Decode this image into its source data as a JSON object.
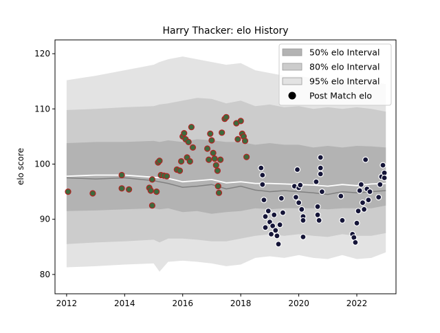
{
  "chart_data": {
    "type": "scatter",
    "title": "Harry Thacker: elo History",
    "xlabel": "",
    "ylabel": "elo score",
    "xlim": [
      2011.6,
      2023.35
    ],
    "ylim": [
      76.5,
      122.5
    ],
    "x_ticks": [
      2012,
      2014,
      2016,
      2018,
      2020,
      2022
    ],
    "y_ticks": [
      80,
      90,
      100,
      110,
      120
    ],
    "legend_position": "upper right",
    "legend": [
      {
        "label": "50% elo Interval",
        "kind": "band",
        "color": "#b3b3b3"
      },
      {
        "label": "80% elo Interval",
        "kind": "band",
        "color": "#cccccc"
      },
      {
        "label": "95% elo Interval",
        "kind": "band",
        "color": "#e3e3e3"
      },
      {
        "label": "Post Match elo",
        "kind": "marker",
        "color": "#000000"
      }
    ],
    "colors": {
      "band50": "#b3b3b3",
      "band80": "#cccccc",
      "band95": "#e3e3e3",
      "median_line": "#808080",
      "mean_line": "#ffffff",
      "green_fill": "#3d6b3d",
      "red_edge": "#b22222",
      "dark_fill": "#151538",
      "white_edge": "#ffffff"
    },
    "intervals": {
      "x": [
        2012.0,
        2013.0,
        2014.0,
        2015.0,
        2015.2,
        2015.5,
        2016.0,
        2016.5,
        2017.0,
        2017.5,
        2018.0,
        2018.5,
        2019.0,
        2019.5,
        2020.0,
        2020.5,
        2021.0,
        2021.5,
        2022.0,
        2022.5,
        2023.0
      ],
      "p95_low": [
        81.3,
        81.5,
        81.8,
        82.0,
        80.5,
        82.3,
        82.5,
        82.3,
        82.0,
        81.5,
        81.8,
        83.0,
        83.3,
        83.0,
        83.5,
        83.0,
        82.8,
        83.5,
        82.8,
        83.0,
        84.0
      ],
      "p80_low": [
        85.5,
        85.8,
        86.0,
        86.3,
        85.8,
        86.5,
        86.5,
        86.3,
        86.0,
        86.0,
        86.5,
        87.0,
        87.3,
        87.0,
        87.3,
        87.0,
        86.8,
        87.3,
        87.0,
        87.0,
        87.5
      ],
      "p50_low": [
        91.5,
        91.6,
        91.8,
        92.0,
        91.8,
        92.0,
        91.3,
        91.5,
        91.0,
        91.3,
        91.5,
        92.0,
        91.8,
        92.0,
        92.0,
        92.0,
        91.8,
        92.0,
        92.0,
        92.0,
        92.5
      ],
      "p50_high": [
        103.8,
        104.0,
        104.0,
        104.2,
        104.0,
        104.3,
        104.0,
        104.5,
        104.3,
        104.0,
        104.0,
        103.5,
        103.8,
        103.5,
        103.5,
        103.0,
        103.3,
        103.0,
        103.3,
        103.2,
        103.0
      ],
      "p80_high": [
        109.8,
        110.0,
        110.3,
        110.5,
        110.8,
        111.0,
        111.5,
        112.0,
        111.8,
        111.0,
        111.5,
        110.5,
        110.8,
        110.3,
        110.5,
        110.0,
        110.3,
        110.0,
        110.3,
        110.0,
        109.5
      ],
      "p95_high": [
        115.2,
        116.0,
        117.0,
        118.0,
        118.5,
        119.0,
        119.5,
        119.0,
        118.5,
        118.0,
        118.3,
        117.0,
        116.5,
        116.0,
        116.0,
        115.5,
        115.0,
        115.5,
        115.0,
        115.0,
        114.5
      ]
    },
    "median_line": {
      "x": [
        2012.0,
        2013.0,
        2014.0,
        2015.0,
        2015.5,
        2016.0,
        2016.5,
        2017.0,
        2017.5,
        2018.0,
        2018.5,
        2019.0,
        2019.5,
        2020.0,
        2020.5,
        2021.0,
        2021.5,
        2022.0,
        2022.5,
        2023.0
      ],
      "y": [
        97.5,
        97.3,
        97.5,
        97.0,
        96.5,
        95.8,
        96.0,
        96.3,
        95.5,
        96.0,
        95.3,
        95.0,
        95.2,
        95.0,
        94.8,
        94.5,
        95.0,
        94.8,
        95.0,
        95.2
      ]
    },
    "mean_line": {
      "x": [
        2012.0,
        2013.0,
        2014.0,
        2015.0,
        2015.5,
        2016.0,
        2016.5,
        2017.0,
        2017.5,
        2018.0,
        2018.5,
        2019.0,
        2019.5,
        2020.0,
        2020.5,
        2021.0,
        2021.5,
        2022.0,
        2022.5,
        2023.0
      ],
      "y": [
        97.8,
        98.0,
        98.0,
        97.6,
        97.4,
        96.8,
        97.0,
        97.2,
        96.6,
        96.8,
        96.5,
        96.5,
        96.4,
        96.3,
        96.2,
        96.0,
        96.3,
        96.1,
        96.4,
        96.5
      ]
    },
    "series": [
      {
        "style": "green-red",
        "points": [
          [
            2012.05,
            95.0
          ],
          [
            2012.9,
            94.7
          ],
          [
            2013.9,
            98.0
          ],
          [
            2013.9,
            95.6
          ],
          [
            2014.15,
            95.4
          ],
          [
            2014.85,
            95.7
          ],
          [
            2014.9,
            95.2
          ],
          [
            2014.95,
            97.2
          ],
          [
            2014.95,
            92.5
          ],
          [
            2015.1,
            95.0
          ],
          [
            2015.15,
            100.3
          ],
          [
            2015.2,
            100.6
          ],
          [
            2015.25,
            98.0
          ],
          [
            2015.35,
            97.9
          ],
          [
            2015.45,
            97.8
          ],
          [
            2015.8,
            99.0
          ],
          [
            2015.9,
            98.8
          ],
          [
            2015.95,
            100.5
          ],
          [
            2016.0,
            105.0
          ],
          [
            2016.05,
            105.6
          ],
          [
            2016.1,
            104.5
          ],
          [
            2016.15,
            101.2
          ],
          [
            2016.2,
            104.0
          ],
          [
            2016.25,
            100.5
          ],
          [
            2016.3,
            106.7
          ],
          [
            2016.35,
            103.0
          ],
          [
            2016.85,
            102.8
          ],
          [
            2016.9,
            100.8
          ],
          [
            2016.95,
            105.5
          ],
          [
            2017.0,
            104.3
          ],
          [
            2017.05,
            102.0
          ],
          [
            2017.1,
            101.0
          ],
          [
            2017.15,
            99.8
          ],
          [
            2017.2,
            98.8
          ],
          [
            2017.22,
            96.0
          ],
          [
            2017.25,
            94.8
          ],
          [
            2017.3,
            100.8
          ],
          [
            2017.35,
            105.7
          ],
          [
            2017.45,
            108.2
          ],
          [
            2017.5,
            108.5
          ],
          [
            2017.85,
            107.4
          ],
          [
            2017.9,
            104.5
          ],
          [
            2018.0,
            107.8
          ],
          [
            2018.05,
            105.5
          ],
          [
            2018.1,
            105.0
          ],
          [
            2018.15,
            104.2
          ],
          [
            2018.2,
            101.3
          ]
        ]
      },
      {
        "style": "dark-white",
        "points": [
          [
            2018.7,
            99.3
          ],
          [
            2018.75,
            98.0
          ],
          [
            2018.75,
            96.3
          ],
          [
            2018.8,
            93.5
          ],
          [
            2018.85,
            90.5
          ],
          [
            2018.85,
            88.5
          ],
          [
            2018.95,
            91.5
          ],
          [
            2019.0,
            89.5
          ],
          [
            2019.05,
            87.3
          ],
          [
            2019.1,
            88.8
          ],
          [
            2019.15,
            90.8
          ],
          [
            2019.2,
            88.0
          ],
          [
            2019.25,
            87.0
          ],
          [
            2019.3,
            85.5
          ],
          [
            2019.35,
            89.0
          ],
          [
            2019.4,
            93.8
          ],
          [
            2019.45,
            91.2
          ],
          [
            2019.85,
            96.0
          ],
          [
            2019.9,
            94.0
          ],
          [
            2019.95,
            99.0
          ],
          [
            2020.0,
            95.7
          ],
          [
            2020.0,
            93.0
          ],
          [
            2020.05,
            96.2
          ],
          [
            2020.1,
            91.8
          ],
          [
            2020.15,
            90.5
          ],
          [
            2020.15,
            89.8
          ],
          [
            2020.15,
            86.8
          ],
          [
            2020.6,
            96.8
          ],
          [
            2020.65,
            92.3
          ],
          [
            2020.65,
            90.8
          ],
          [
            2020.7,
            89.8
          ],
          [
            2020.75,
            101.2
          ],
          [
            2020.75,
            99.3
          ],
          [
            2020.75,
            98.2
          ],
          [
            2020.8,
            95.0
          ],
          [
            2021.45,
            94.2
          ],
          [
            2021.5,
            89.8
          ],
          [
            2021.85,
            87.3
          ],
          [
            2021.9,
            86.7
          ],
          [
            2021.95,
            85.8
          ],
          [
            2022.0,
            89.3
          ],
          [
            2022.05,
            91.5
          ],
          [
            2022.1,
            95.2
          ],
          [
            2022.15,
            96.3
          ],
          [
            2022.2,
            93.0
          ],
          [
            2022.25,
            91.8
          ],
          [
            2022.3,
            100.8
          ],
          [
            2022.35,
            95.5
          ],
          [
            2022.4,
            93.5
          ],
          [
            2022.45,
            95.0
          ],
          [
            2022.75,
            94.0
          ],
          [
            2022.8,
            96.3
          ],
          [
            2022.85,
            97.7
          ],
          [
            2022.9,
            99.8
          ],
          [
            2022.95,
            98.4
          ],
          [
            2022.95,
            97.5
          ]
        ]
      }
    ]
  }
}
